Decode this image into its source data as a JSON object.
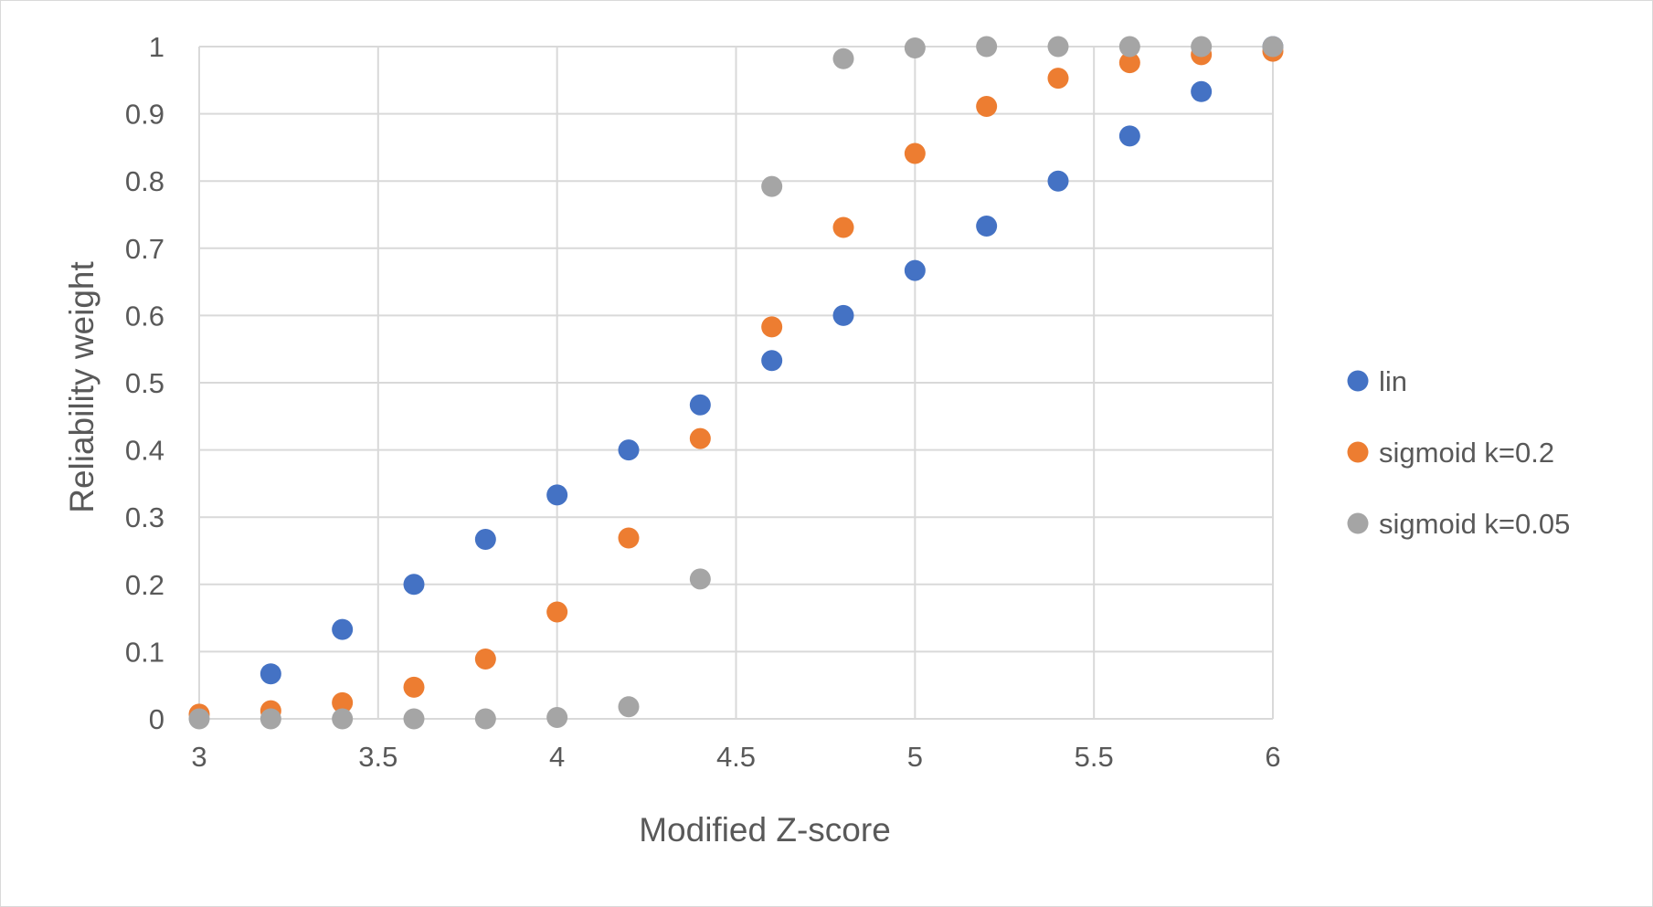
{
  "chart_data": {
    "type": "scatter",
    "title": "",
    "xlabel": "Modified Z-score",
    "ylabel": "Reliability weight",
    "xlim": [
      3,
      6
    ],
    "ylim": [
      0,
      1
    ],
    "x_ticks": [
      3,
      3.5,
      4,
      4.5,
      5,
      5.5,
      6
    ],
    "y_ticks": [
      0,
      0.1,
      0.2,
      0.3,
      0.4,
      0.5,
      0.6,
      0.7,
      0.8,
      0.9,
      1
    ],
    "x_tick_labels": [
      "3",
      "3.5",
      "4",
      "4.5",
      "5",
      "5.5",
      "6"
    ],
    "y_tick_labels": [
      "0",
      "0.1",
      "0.2",
      "0.3",
      "0.4",
      "0.5",
      "0.6",
      "0.7",
      "0.8",
      "0.9",
      "1"
    ],
    "grid": true,
    "legend_position": "right",
    "x": [
      3.0,
      3.2,
      3.4,
      3.6,
      3.8,
      4.0,
      4.2,
      4.4,
      4.6,
      4.8,
      5.0,
      5.2,
      5.4,
      5.6,
      5.8,
      6.0
    ],
    "series": [
      {
        "name": "lin",
        "color": "#4472C4",
        "values": [
          null,
          0.067,
          0.133,
          0.2,
          0.267,
          0.333,
          0.4,
          0.467,
          0.533,
          0.6,
          0.667,
          0.733,
          0.8,
          0.867,
          0.933,
          1.0
        ]
      },
      {
        "name": "sigmoid k=0.2",
        "color": "#ED7D31",
        "values": [
          0.007,
          0.012,
          0.024,
          0.047,
          0.089,
          0.159,
          0.269,
          0.417,
          0.583,
          0.731,
          0.841,
          0.911,
          0.953,
          0.976,
          0.988,
          0.993
        ]
      },
      {
        "name": "sigmoid k=0.05",
        "color": "#A5A5A5",
        "values": [
          0.0,
          0.0,
          0.0,
          0.0,
          0.0,
          0.002,
          0.018,
          0.208,
          0.792,
          0.982,
          0.998,
          1.0,
          1.0,
          1.0,
          1.0,
          1.0
        ]
      }
    ]
  }
}
